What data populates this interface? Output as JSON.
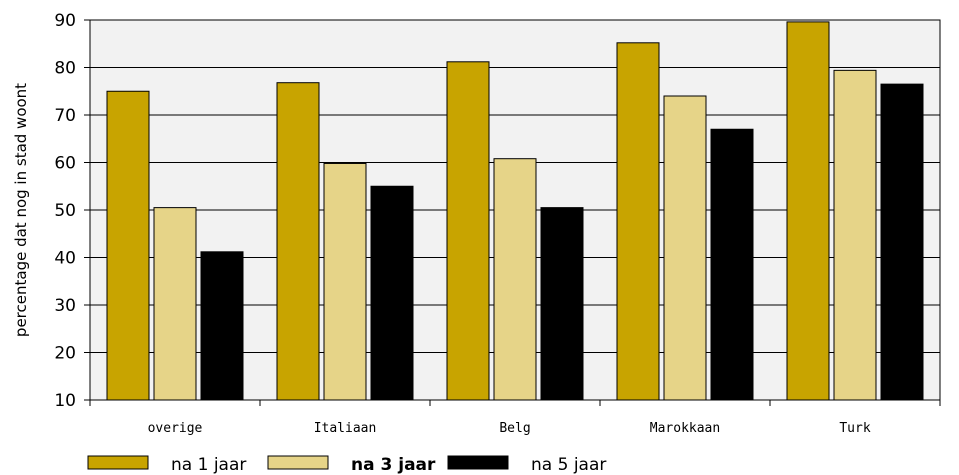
{
  "chart_data": {
    "type": "bar",
    "categories": [
      "overige",
      "Italiaan",
      "Belg",
      "Marokkaan",
      "Turk"
    ],
    "series": [
      {
        "name": "na 1 jaar",
        "values": [
          75,
          76.8,
          81.2,
          85.2,
          89.6
        ],
        "color": "#c8a400"
      },
      {
        "name": "na 3 jaar",
        "values": [
          50.5,
          59.8,
          60.8,
          74,
          79.4
        ],
        "color": "#e6d488"
      },
      {
        "name": "na 5 jaar",
        "values": [
          41.2,
          55,
          50.5,
          67,
          76.5
        ],
        "color": "#000000"
      }
    ],
    "ylabel": "percentage dat nog in stad woont",
    "ylim": [
      10,
      90
    ],
    "yticks": [
      10,
      20,
      30,
      40,
      50,
      60,
      70,
      80,
      90
    ],
    "grid": true,
    "legend_position": "bottom-left",
    "plot_background": "#f2f2f2"
  }
}
